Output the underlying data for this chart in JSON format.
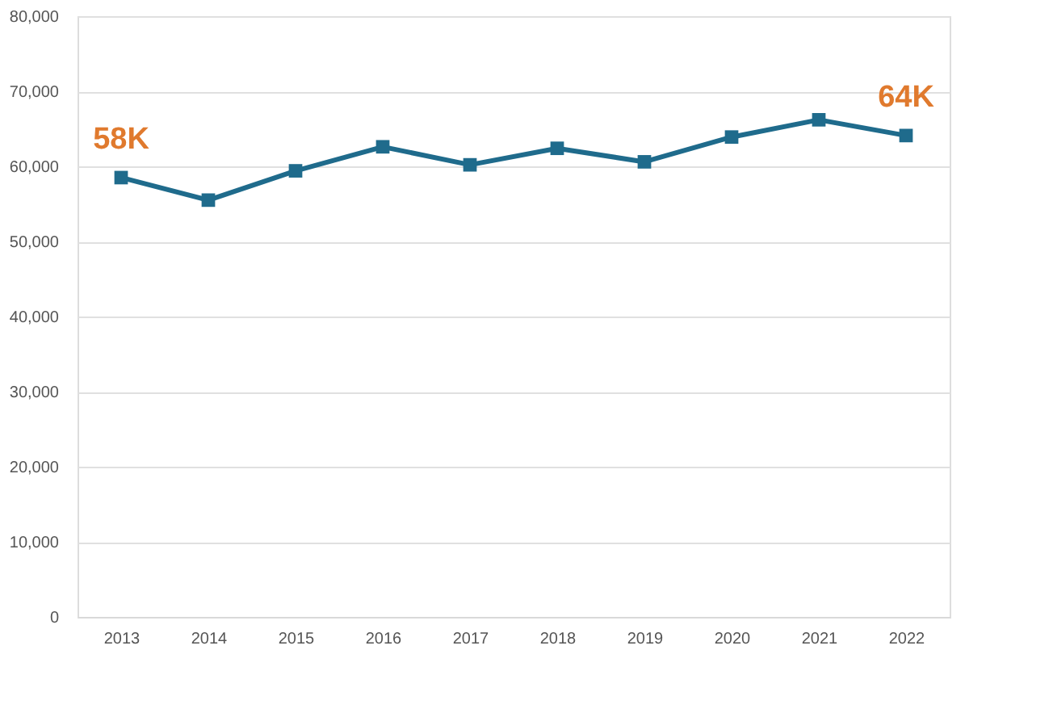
{
  "chart_data": {
    "type": "line",
    "categories": [
      "2013",
      "2014",
      "2015",
      "2016",
      "2017",
      "2018",
      "2019",
      "2020",
      "2021",
      "2022"
    ],
    "series": [
      {
        "color": "#1f6b8c",
        "values": [
          58500,
          55500,
          59400,
          62600,
          60200,
          62400,
          60600,
          63900,
          66200,
          64100
        ]
      }
    ],
    "ylim": [
      0,
      80000
    ],
    "yticks": [
      {
        "value": 0,
        "label": "0"
      },
      {
        "value": 10000,
        "label": "10,000"
      },
      {
        "value": 20000,
        "label": "20,000"
      },
      {
        "value": 30000,
        "label": "30,000"
      },
      {
        "value": 40000,
        "label": "40,000"
      },
      {
        "value": 50000,
        "label": "50,000"
      },
      {
        "value": 60000,
        "label": "60,000"
      },
      {
        "value": 70000,
        "label": "70,000"
      },
      {
        "value": 80000,
        "label": "80,000"
      }
    ],
    "annotations": [
      {
        "text": "58K",
        "x": "2013",
        "y": 58500
      },
      {
        "text": "64K",
        "x": "2022",
        "y": 64100
      }
    ],
    "grid": "y",
    "marker": "square",
    "line_style": "solid"
  }
}
